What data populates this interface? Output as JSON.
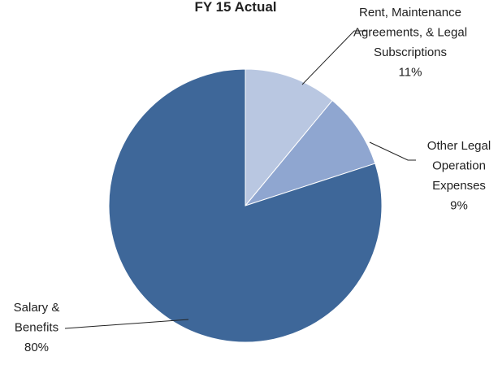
{
  "chart_data": {
    "type": "pie",
    "title": "FY 15 Actual",
    "categories": [
      "Rent, Maintenance\nAgreements, & Legal\nSubscriptions",
      "Other Legal\nOperation\nExpenses",
      "Salary &\nBenefits"
    ],
    "values": [
      11,
      9,
      80
    ],
    "value_labels": [
      "11%",
      "9%",
      "80%"
    ],
    "colors": [
      "#b9c7e1",
      "#8fa6d0",
      "#3e6799"
    ]
  }
}
